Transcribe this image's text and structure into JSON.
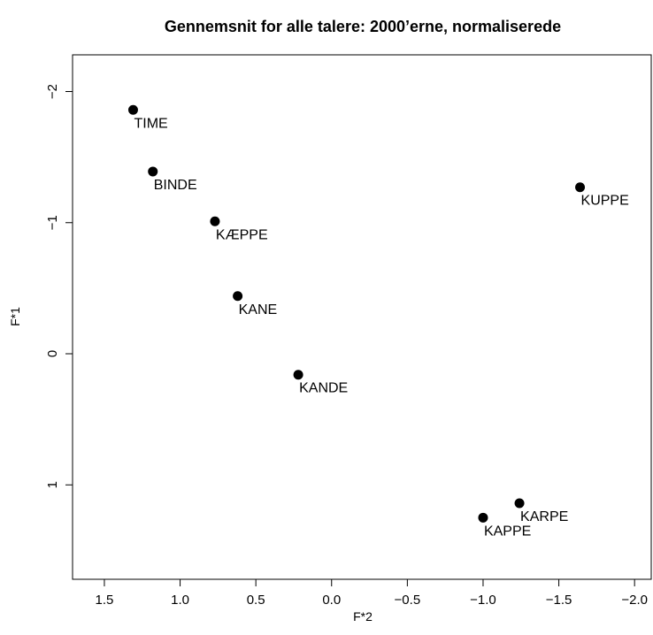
{
  "chart_data": {
    "type": "scatter",
    "title": "Gennemsnit for alle talere: 2000’erne, normaliserede",
    "x_label": "F*2",
    "y_label": "F*1",
    "labels": [
      "TIME",
      "BINDE",
      "KÆPPE",
      "KANE",
      "KANDE",
      "KUPPE",
      "KARPE",
      "KAPPE"
    ],
    "x": [
      1.31,
      1.18,
      0.77,
      0.62,
      0.22,
      -1.64,
      -1.24,
      -1.0
    ],
    "values": [
      -1.86,
      -1.39,
      -1.01,
      -0.44,
      0.16,
      -1.27,
      1.14,
      1.25
    ],
    "color": "#000000",
    "xlim": [
      1.71,
      -2.11
    ],
    "ylim": [
      -2.28,
      1.72
    ],
    "xticks": [
      {
        "value": 1.5,
        "label": "1.5"
      },
      {
        "value": 1.0,
        "label": "1.0"
      },
      {
        "value": 0.5,
        "label": "0.5"
      },
      {
        "value": 0.0,
        "label": "0.0"
      },
      {
        "value": -0.5,
        "label": "−0.5"
      },
      {
        "value": -1.0,
        "label": "−1.0"
      },
      {
        "value": -1.5,
        "label": "−1.5"
      },
      {
        "value": -2.0,
        "label": "−2.0"
      }
    ],
    "yticks": [
      {
        "value": -2,
        "label": "−2"
      },
      {
        "value": -1,
        "label": "−1"
      },
      0,
      1
    ],
    "grid": false
  }
}
